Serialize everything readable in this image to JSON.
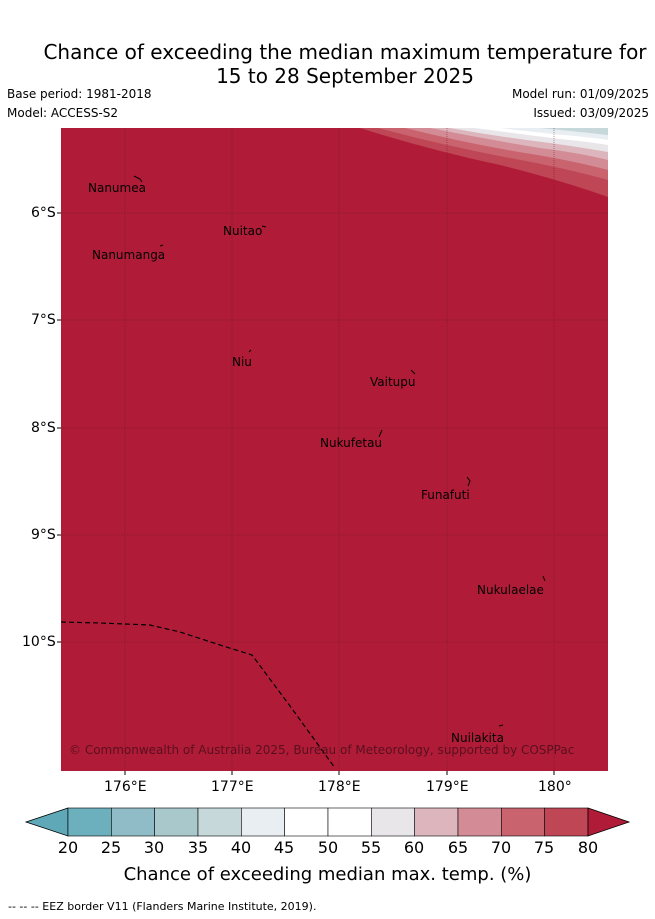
{
  "title": {
    "line1": "Chance of exceeding the median maximum temperature for",
    "line2": "15 to 28 September 2025"
  },
  "meta": {
    "base_period": "Base period: 1981-2018",
    "model": "Model: ACCESS-S2",
    "model_run": "Model run: 01/09/2025",
    "issued": "Issued: 03/09/2025"
  },
  "map": {
    "fill_color": "#b01c38",
    "lat_labels": [
      "6°S",
      "7°S",
      "8°S",
      "9°S",
      "10°S"
    ],
    "lon_labels": [
      "176°E",
      "177°E",
      "178°E",
      "179°E",
      "180°"
    ],
    "places": [
      {
        "name": "Nanumea"
      },
      {
        "name": "Nuitao"
      },
      {
        "name": "Nanumanga"
      },
      {
        "name": "Niu"
      },
      {
        "name": "Vaitupu"
      },
      {
        "name": "Nukufetau"
      },
      {
        "name": "Funafuti"
      },
      {
        "name": "Nukulaelae"
      },
      {
        "name": "Nuilakita"
      }
    ],
    "copyright": "© Commonwealth of Australia 2025, Bureau of Meteorology, supported by COSPPac"
  },
  "colorbar": {
    "ticks": [
      "20",
      "25",
      "30",
      "35",
      "40",
      "45",
      "50",
      "55",
      "60",
      "65",
      "70",
      "75",
      "80"
    ],
    "colors": [
      "#5ea8b8",
      "#6cb0be",
      "#8fbcc6",
      "#a9c8cc",
      "#c6d8da",
      "#e8eef1",
      "#ffffff",
      "#ffffff",
      "#e8e6e9",
      "#ddb6bd",
      "#d38c95",
      "#c9646f",
      "#bf4655",
      "#b01c38"
    ],
    "title": "Chance of exceeding median max. temp. (%)"
  },
  "footnote": "--  --  -- EEZ border V11 (Flanders Marine Institute, 2019)."
}
